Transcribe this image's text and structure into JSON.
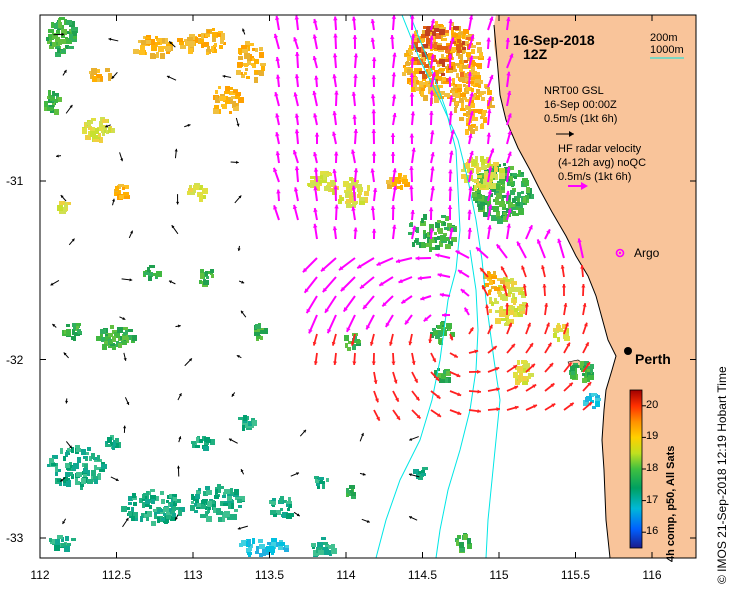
{
  "header": {
    "date": "16-Sep-2018",
    "hour": "12Z",
    "isobath_200": "200m",
    "isobath_1000": "1000m"
  },
  "legend": {
    "gsl_title": "NRT00 GSL",
    "gsl_time": "16-Sep 00:00Z",
    "gsl_scale": "0.5m/s (1kt 6h)",
    "hf_title": "HF radar velocity",
    "hf_avg": "(4-12h avg) noQC",
    "hf_scale": "0.5m/s (1kt 6h)",
    "argo": "Argo"
  },
  "places": {
    "city": "Perth"
  },
  "axes": {
    "x_ticks": [
      "112",
      "112.5",
      "113",
      "113.5",
      "114",
      "114.5",
      "115",
      "115.5",
      "116"
    ],
    "y_ticks": [
      "-31",
      "-32",
      "-33"
    ]
  },
  "colorbar": {
    "label": "4h comp, p50, All Sats",
    "ticks": [
      "20",
      "19",
      "18",
      "17",
      "16"
    ],
    "min": 15.5,
    "max": 20.5
  },
  "credit": "© IMOS 21-Sep-2018 12:19 Hobart Time",
  "colors": {
    "land": "#f9c49a",
    "isobath": "#00e6e6",
    "hf_vectors": "#ff00ff",
    "hf_strong_vectors": "#ff0000",
    "gsl_vectors": "#000000"
  }
}
